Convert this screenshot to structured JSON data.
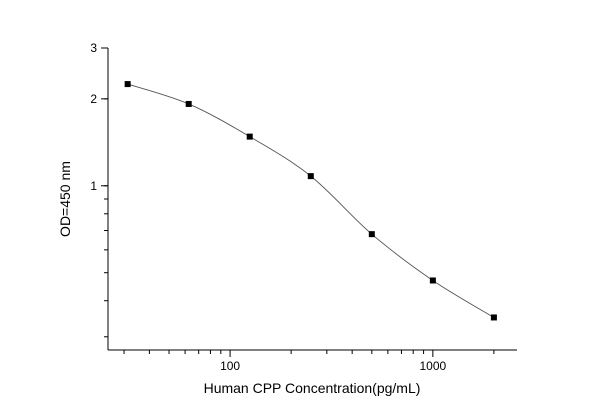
{
  "chart_data": {
    "type": "scatter",
    "xscale": "log",
    "yscale": "log",
    "xlim": [
      25,
      2600
    ],
    "ylim": [
      0.27,
      3
    ],
    "xlabel": "Human CPP Concentration(pg/mL)",
    "ylabel": "OD=450 nm",
    "xticks": [
      {
        "value": 100,
        "label": "100"
      },
      {
        "value": 1000,
        "label": "1000"
      }
    ],
    "yticks": [
      {
        "value": 1,
        "label": "1"
      },
      {
        "value": 2,
        "label": "2"
      },
      {
        "value": 3,
        "label": "3"
      }
    ],
    "grid": false,
    "legend": "none",
    "marker_color": "#000000",
    "line_color": "#555555",
    "series": [
      {
        "x": [
          31.25,
          62.5,
          125,
          250,
          500,
          1000,
          2000
        ],
        "y": [
          2.25,
          1.92,
          1.48,
          1.08,
          0.68,
          0.47,
          0.35
        ]
      }
    ]
  }
}
